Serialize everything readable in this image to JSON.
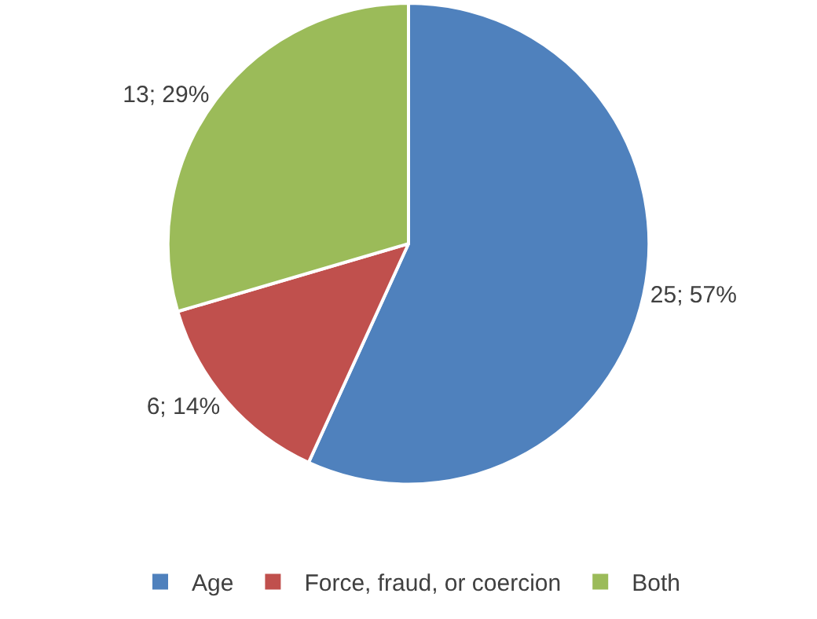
{
  "chart_data": {
    "type": "pie",
    "categories": [
      "Age",
      "Force, fraud, or coercion",
      "Both"
    ],
    "values": [
      25,
      6,
      13
    ],
    "colors": [
      "#4f81bd",
      "#c0504d",
      "#9bbb59"
    ],
    "value_labels": [
      "25; 57%",
      "6; 14%",
      "13; 29%"
    ],
    "legend": "bottom"
  }
}
